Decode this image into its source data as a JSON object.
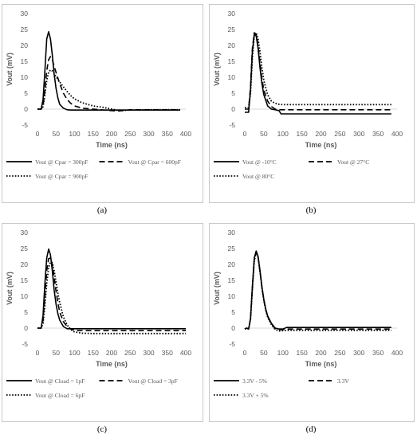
{
  "chart_data": [
    {
      "panel": "(a)",
      "type": "line",
      "xlabel": "Time (ns)",
      "ylabel": "Vout (mV)",
      "xlim": [
        0,
        400
      ],
      "ylim": [
        -5,
        30
      ],
      "xticks": [
        0,
        50,
        100,
        150,
        200,
        250,
        300,
        350,
        400
      ],
      "yticks": [
        -5,
        0,
        5,
        10,
        15,
        20,
        25,
        30
      ],
      "legend_position": "bottom",
      "series": [
        {
          "name": "Vout @ Cpar = 300pF",
          "style": "solid",
          "x": [
            0,
            10,
            15,
            20,
            25,
            30,
            35,
            40,
            45,
            50,
            55,
            60,
            70,
            80,
            90,
            100,
            120,
            150,
            200,
            250,
            300,
            350,
            385
          ],
          "y": [
            0,
            0,
            3,
            12,
            22,
            24.3,
            22,
            17,
            11,
            6.5,
            3.5,
            1.5,
            0.3,
            -0.2,
            -0.3,
            -0.3,
            -0.3,
            -0.3,
            -0.3,
            -0.3,
            -0.3,
            -0.3,
            -0.3
          ]
        },
        {
          "name": "Vout @ Cpar = 600pF",
          "style": "dashed",
          "x": [
            0,
            10,
            15,
            20,
            25,
            30,
            35,
            40,
            45,
            50,
            60,
            70,
            80,
            90,
            100,
            120,
            150,
            200,
            220,
            250,
            300,
            350,
            385
          ],
          "y": [
            0,
            0,
            1,
            6,
            12,
            15.5,
            16.5,
            15.5,
            13.5,
            11.5,
            8,
            5,
            3,
            1.8,
            1,
            0.3,
            0,
            -0.5,
            -0.6,
            -0.2,
            -0.2,
            -0.2,
            -0.2
          ]
        },
        {
          "name": "Vout @ Cpar = 900pF",
          "style": "dotted",
          "x": [
            0,
            10,
            15,
            20,
            25,
            30,
            35,
            40,
            45,
            50,
            60,
            70,
            80,
            90,
            100,
            120,
            150,
            180,
            200,
            220,
            250,
            300,
            350,
            385
          ],
          "y": [
            0,
            0,
            0.8,
            4.5,
            9,
            11.5,
            12.3,
            12,
            11.2,
            10.2,
            8.5,
            7,
            5.5,
            4.2,
            3.2,
            2,
            1,
            0.5,
            0,
            -0.5,
            -0.3,
            -0.2,
            -0.2,
            -0.2
          ]
        }
      ]
    },
    {
      "panel": "(b)",
      "type": "line",
      "xlabel": "Time (ns)",
      "ylabel": "Vout (mV)",
      "xlim": [
        0,
        400
      ],
      "ylim": [
        -5,
        30
      ],
      "xticks": [
        0,
        50,
        100,
        150,
        200,
        250,
        300,
        350,
        400
      ],
      "yticks": [
        -5,
        0,
        5,
        10,
        15,
        20,
        25,
        30
      ],
      "legend_position": "bottom",
      "series": [
        {
          "name": "Vout @ -10°C",
          "style": "solid",
          "x": [
            0,
            10,
            15,
            20,
            25,
            30,
            35,
            40,
            45,
            50,
            60,
            70,
            80,
            90,
            95,
            100,
            150,
            200,
            250,
            300,
            350,
            385
          ],
          "y": [
            -1,
            -1,
            6,
            18,
            23.5,
            23,
            19,
            13,
            8,
            4.5,
            1,
            0,
            -0.2,
            -0.5,
            -1.5,
            -1.5,
            -1.5,
            -1.5,
            -1.5,
            -1.5,
            -1.5,
            -1.5
          ]
        },
        {
          "name": "Vout @ 27°C",
          "style": "dashed",
          "x": [
            0,
            10,
            15,
            20,
            25,
            30,
            35,
            40,
            45,
            50,
            60,
            70,
            80,
            90,
            100,
            150,
            200,
            250,
            300,
            350,
            385
          ],
          "y": [
            0,
            0,
            7,
            19,
            24,
            23.5,
            20,
            14.5,
            9.5,
            6,
            2.5,
            0.8,
            0,
            -0.2,
            -0.2,
            -0.2,
            -0.2,
            -0.2,
            -0.2,
            -0.2,
            -0.2
          ]
        },
        {
          "name": "Vout @ 80°C",
          "style": "dotted",
          "x": [
            0,
            10,
            15,
            20,
            25,
            30,
            35,
            40,
            45,
            50,
            60,
            70,
            80,
            90,
            100,
            150,
            200,
            250,
            300,
            350,
            385
          ],
          "y": [
            0.5,
            0.5,
            5,
            16,
            23,
            24,
            22,
            18,
            13,
            9,
            4.5,
            2.5,
            1.8,
            1.5,
            1.4,
            1.4,
            1.4,
            1.4,
            1.4,
            1.4,
            1.4
          ]
        }
      ]
    },
    {
      "panel": "(c)",
      "type": "line",
      "xlabel": "Time (ns)",
      "ylabel": "Vout (mV)",
      "xlim": [
        0,
        400
      ],
      "ylim": [
        -5,
        30
      ],
      "xticks": [
        0,
        50,
        100,
        150,
        200,
        250,
        300,
        350,
        400
      ],
      "yticks": [
        -5,
        0,
        5,
        10,
        15,
        20,
        25,
        30
      ],
      "legend_position": "bottom",
      "series": [
        {
          "name": "Vout @ Cload = 1pF",
          "style": "solid",
          "x": [
            0,
            10,
            15,
            20,
            25,
            30,
            35,
            40,
            45,
            50,
            55,
            60,
            70,
            80,
            90,
            100,
            150,
            200,
            250,
            300,
            350,
            400
          ],
          "y": [
            0,
            0,
            4,
            14,
            22,
            24.8,
            23,
            18,
            12,
            7.5,
            4.5,
            2.5,
            0.5,
            -0.2,
            -0.2,
            -0.2,
            -0.2,
            -0.2,
            -0.2,
            -0.2,
            -0.2,
            -0.2
          ]
        },
        {
          "name": "Vout @ Cload = 3pF",
          "style": "dashed",
          "x": [
            0,
            10,
            15,
            20,
            25,
            30,
            35,
            40,
            45,
            50,
            55,
            60,
            70,
            80,
            90,
            100,
            120,
            150,
            200,
            250,
            300,
            350,
            400
          ],
          "y": [
            0,
            0,
            2.5,
            10,
            18,
            21.8,
            22,
            20,
            16,
            11.5,
            8,
            5,
            2,
            0.5,
            -0.3,
            -0.7,
            -0.8,
            -0.8,
            -0.8,
            -0.8,
            -0.8,
            -0.8,
            -0.8
          ]
        },
        {
          "name": "Vout @ Cload = 6pF",
          "style": "dotted",
          "x": [
            0,
            10,
            15,
            20,
            25,
            30,
            35,
            40,
            45,
            50,
            55,
            60,
            70,
            80,
            90,
            100,
            120,
            150,
            200,
            250,
            300,
            350,
            400
          ],
          "y": [
            0,
            0,
            1.5,
            7,
            14,
            19,
            20.8,
            20.5,
            18,
            14.5,
            11,
            8,
            3.5,
            1,
            -0.5,
            -1.2,
            -1.6,
            -1.7,
            -1.7,
            -1.7,
            -1.7,
            -1.7,
            -1.7
          ]
        }
      ]
    },
    {
      "panel": "(d)",
      "type": "line",
      "xlabel": "Time (ns)",
      "ylabel": "Vout (mV)",
      "xlim": [
        0,
        400
      ],
      "ylim": [
        -5,
        30
      ],
      "xticks": [
        0,
        50,
        100,
        150,
        200,
        250,
        300,
        350,
        400
      ],
      "yticks": [
        -5,
        0,
        5,
        10,
        15,
        20,
        25,
        30
      ],
      "legend_position": "bottom",
      "series": [
        {
          "name": "3.3V - 5%",
          "style": "solid",
          "x": [
            0,
            5,
            10,
            15,
            20,
            25,
            30,
            35,
            40,
            45,
            50,
            55,
            60,
            70,
            80,
            90,
            100,
            110,
            150,
            200,
            250,
            300,
            350,
            385
          ],
          "y": [
            -0.3,
            0,
            -0.3,
            3,
            13,
            22,
            24.2,
            22.5,
            18,
            13,
            9,
            6,
            3.8,
            1.5,
            0,
            -0.3,
            -0.3,
            0.2,
            0.2,
            0.2,
            0.2,
            0.2,
            0.2,
            0.2
          ]
        },
        {
          "name": "3.3V",
          "style": "dashed",
          "x": [
            0,
            5,
            10,
            15,
            20,
            25,
            30,
            35,
            40,
            45,
            50,
            55,
            60,
            70,
            80,
            90,
            100,
            110,
            150,
            200,
            250,
            300,
            350,
            385
          ],
          "y": [
            -0.3,
            0,
            -0.3,
            3,
            12.5,
            21.5,
            24,
            22.3,
            17.8,
            12.8,
            8.8,
            5.8,
            3.6,
            1.3,
            -0.2,
            -0.5,
            -0.5,
            -0.3,
            -0.3,
            -0.3,
            -0.3,
            -0.3,
            -0.3,
            -0.3
          ]
        },
        {
          "name": "3.3V + 5%",
          "style": "dotted",
          "x": [
            0,
            5,
            10,
            15,
            20,
            25,
            30,
            35,
            40,
            45,
            50,
            55,
            60,
            70,
            80,
            90,
            100,
            110,
            150,
            200,
            250,
            300,
            350,
            385
          ],
          "y": [
            -0.3,
            0,
            -0.3,
            2.8,
            12,
            21,
            23.8,
            22.2,
            17.6,
            12.6,
            8.6,
            5.6,
            3.4,
            1.1,
            -0.5,
            -0.9,
            -0.8,
            -0.7,
            -0.7,
            -0.7,
            -0.7,
            -0.7,
            -0.7,
            -0.7
          ]
        }
      ]
    }
  ]
}
